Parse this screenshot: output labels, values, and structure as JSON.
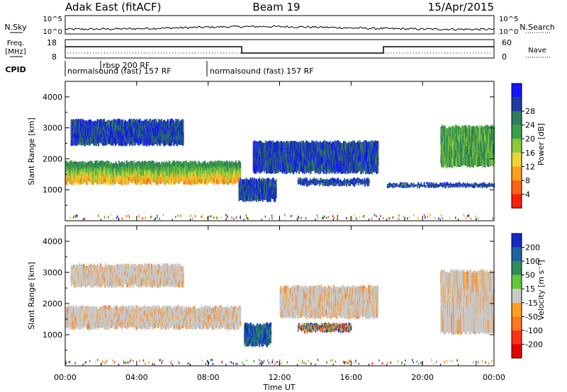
{
  "header": {
    "station": "Adak East (fitACF)",
    "beam": "Beam 19",
    "date": "15/Apr/2015"
  },
  "noise_panel": {
    "left_label": "N.Sky",
    "right_label": "N.Search",
    "left_ticks": [
      "10^5",
      "10^0"
    ],
    "right_ticks": [
      "10^5",
      "10^0"
    ]
  },
  "freq_panel": {
    "left_label_line1": "Freq.",
    "left_label_line2": "[MHz]",
    "right_label": "Nave",
    "left_ticks": [
      "18",
      "8"
    ],
    "right_ticks": [
      "60",
      "0"
    ]
  },
  "cpid": {
    "label": "CPID",
    "segments": [
      "normalsound (fast) 157 RF",
      "rbsp 200 RF",
      "normalsound (fast) 157 RF"
    ]
  },
  "chart_data": [
    {
      "type": "heatmap",
      "name": "power",
      "ylabel": "Slant Range [km]",
      "xlabel": "Time UT",
      "ylim": [
        0,
        4500
      ],
      "y_ticks": [
        1000,
        2000,
        3000,
        4000
      ],
      "x_ticks": [
        "00:00",
        "04:00",
        "08:00",
        "12:00",
        "16:00",
        "20:00",
        "00:00"
      ],
      "colorbar": {
        "label": "Power [dB]",
        "ticks": [
          "4",
          "8",
          "12",
          "16",
          "20",
          "24",
          "28"
        ],
        "colors": [
          "#1414ff",
          "#1e3ca0",
          "#2e7d5a",
          "#3aa046",
          "#8cc83c",
          "#f0d232",
          "#ffa01e",
          "#ff6414",
          "#ff1e0a"
        ]
      },
      "bands": [
        {
          "t0": 0.0,
          "t1": 9.8,
          "r0": 1150,
          "r1": 1950,
          "level": "high"
        },
        {
          "t0": 0.3,
          "t1": 6.6,
          "r0": 2400,
          "r1": 3300,
          "level": "low"
        },
        {
          "t0": 9.7,
          "t1": 11.8,
          "r0": 600,
          "r1": 1400,
          "level": "low"
        },
        {
          "t0": 13.0,
          "t1": 17.0,
          "r0": 1100,
          "r1": 1400,
          "level": "low"
        },
        {
          "t0": 10.5,
          "t1": 17.5,
          "r0": 1500,
          "r1": 2600,
          "level": "low"
        },
        {
          "t0": 18.0,
          "t1": 24.0,
          "r0": 1050,
          "r1": 1250,
          "level": "low"
        },
        {
          "t0": 21.0,
          "t1": 24.0,
          "r0": 1700,
          "r1": 3100,
          "level": "mid"
        }
      ]
    },
    {
      "type": "heatmap",
      "name": "velocity",
      "ylabel": "Slant Range [km]",
      "xlabel": "Time UT",
      "ylim": [
        0,
        4500
      ],
      "y_ticks": [
        1000,
        2000,
        3000,
        4000
      ],
      "x_ticks": [
        "00:00",
        "04:00",
        "08:00",
        "12:00",
        "16:00",
        "20:00",
        "00:00"
      ],
      "colorbar": {
        "label": "Velocity [m s⁻¹]",
        "ticks": [
          "200",
          "100",
          "50",
          "15",
          "-15",
          "-50",
          "-100",
          "-200"
        ],
        "colors": [
          "#1428c8",
          "#1e64a0",
          "#2e8c5a",
          "#64c83c",
          "#c8c8c8",
          "#ffa01e",
          "#ff781e",
          "#ff3214",
          "#e60000"
        ]
      },
      "bands": [
        {
          "t0": 0.0,
          "t1": 9.8,
          "r0": 1150,
          "r1": 1950,
          "level": "gray"
        },
        {
          "t0": 0.3,
          "t1": 6.6,
          "r0": 2500,
          "r1": 3300,
          "level": "gray"
        },
        {
          "t0": 10.0,
          "t1": 11.5,
          "r0": 600,
          "r1": 1400,
          "level": "blue"
        },
        {
          "t0": 13.0,
          "t1": 16.0,
          "r0": 1050,
          "r1": 1400,
          "level": "mixed"
        },
        {
          "t0": 12.0,
          "t1": 17.5,
          "r0": 1500,
          "r1": 2600,
          "level": "gray"
        },
        {
          "t0": 21.0,
          "t1": 24.0,
          "r0": 1000,
          "r1": 3100,
          "level": "gray"
        }
      ]
    }
  ]
}
